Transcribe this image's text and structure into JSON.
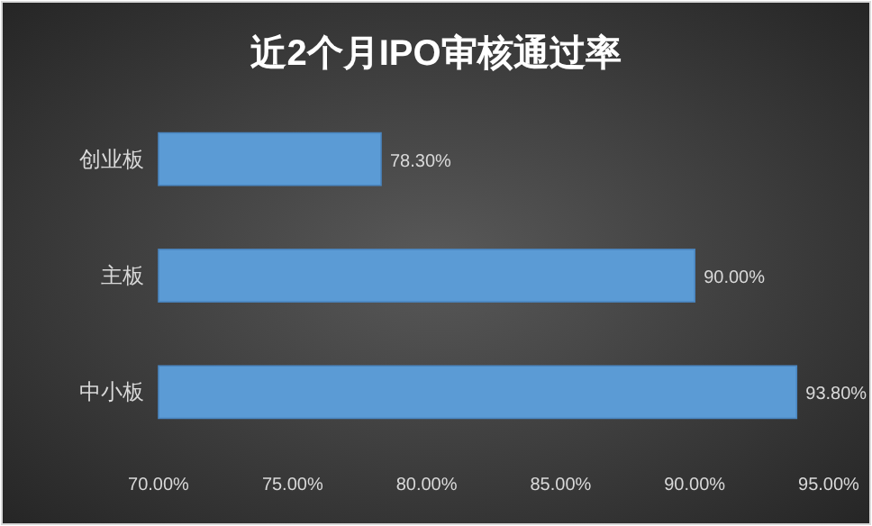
{
  "chart_data": {
    "type": "bar",
    "orientation": "horizontal",
    "title": "近2个月IPO审核通过率",
    "categories": [
      "创业板",
      "主板",
      "中小板"
    ],
    "values": [
      78.3,
      90,
      93.8
    ],
    "value_labels": [
      "78.30%",
      "90.00%",
      "93.80%"
    ],
    "color": "#5b9bd5",
    "xlim": [
      70,
      95
    ],
    "xticks": [
      {
        "value": 70,
        "label": "70.00%"
      },
      {
        "value": 75,
        "label": "75.00%"
      },
      {
        "value": 80,
        "label": "80.00%"
      },
      {
        "value": 85,
        "label": "85.00%"
      },
      {
        "value": 90,
        "label": "90.00%"
      },
      {
        "value": 95,
        "label": "95.00%"
      }
    ]
  }
}
